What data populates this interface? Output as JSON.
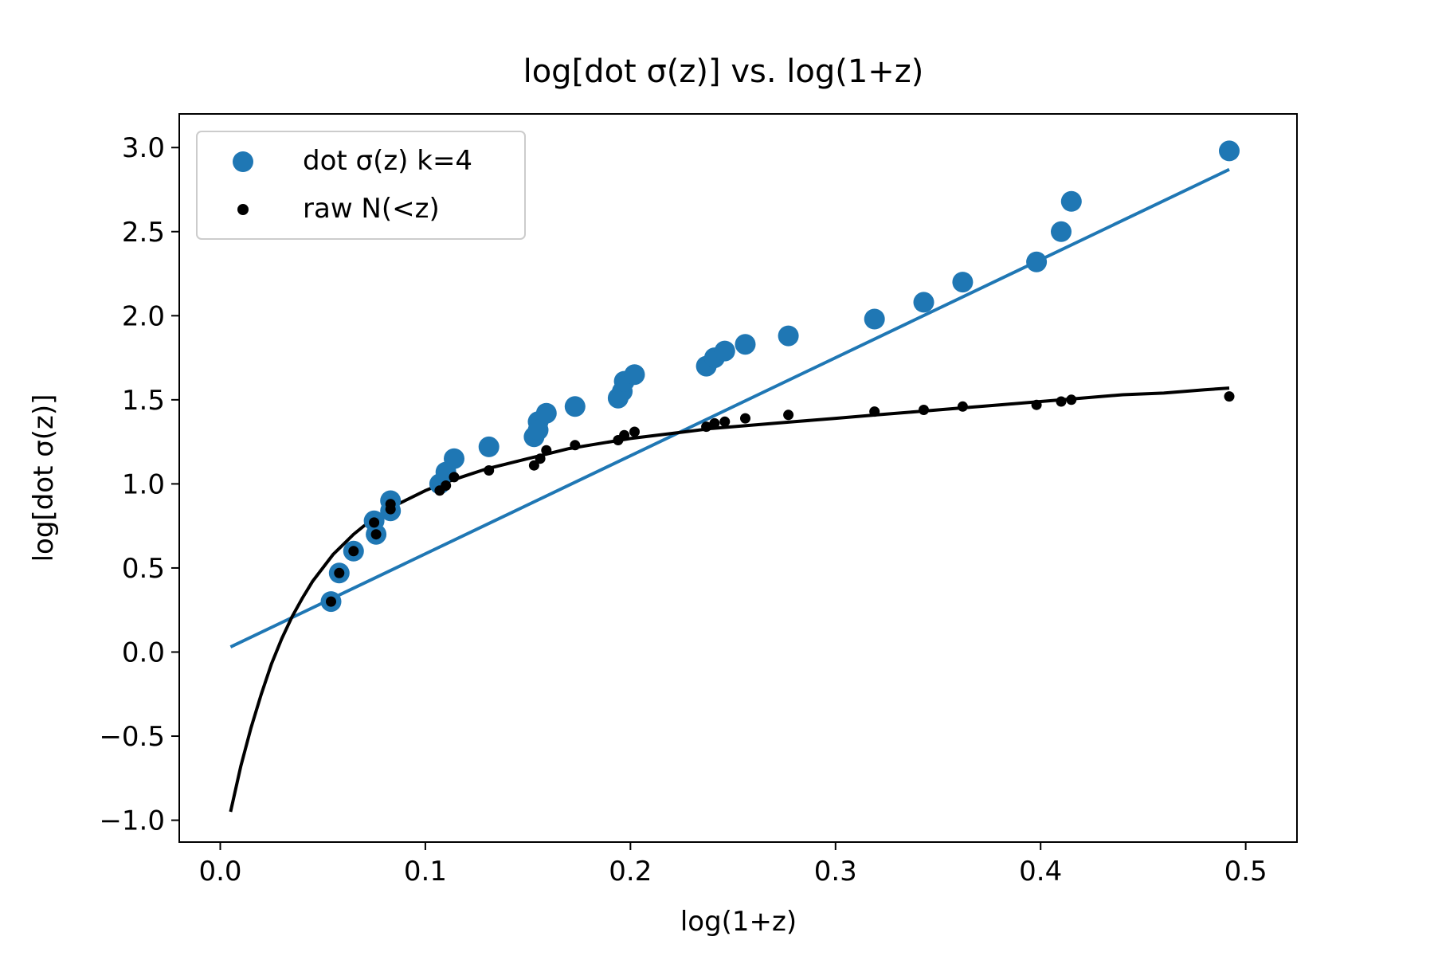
{
  "chart_data": {
    "type": "scatter",
    "title": "log[dot σ(z)] vs. log(1+z)",
    "xlabel": "log(1+z)",
    "ylabel": "log[dot σ(z)]",
    "xlim": [
      -0.02,
      0.525
    ],
    "ylim": [
      -1.13,
      3.2
    ],
    "xticks": [
      0.0,
      0.1,
      0.2,
      0.3,
      0.4,
      0.5
    ],
    "xtick_labels": [
      "0.0",
      "0.1",
      "0.2",
      "0.3",
      "0.4",
      "0.5"
    ],
    "yticks": [
      -1.0,
      -0.5,
      0.0,
      0.5,
      1.0,
      1.5,
      2.0,
      2.5,
      3.0
    ],
    "ytick_labels": [
      "−1.0",
      "−0.5",
      "0.0",
      "0.5",
      "1.0",
      "1.5",
      "2.0",
      "2.5",
      "3.0"
    ],
    "grid": false,
    "legend_position": "top-left",
    "series": [
      {
        "name": "dot σ(z) k=4",
        "kind": "scatter",
        "color": "#1f77b4",
        "x": [
          0.054,
          0.058,
          0.065,
          0.075,
          0.076,
          0.083,
          0.083,
          0.107,
          0.11,
          0.114,
          0.131,
          0.153,
          0.155,
          0.155,
          0.159,
          0.173,
          0.194,
          0.196,
          0.197,
          0.202,
          0.237,
          0.241,
          0.246,
          0.256,
          0.277,
          0.319,
          0.343,
          0.362,
          0.398,
          0.41,
          0.415,
          0.492
        ],
        "y": [
          0.3,
          0.47,
          0.6,
          0.78,
          0.7,
          0.9,
          0.84,
          1.0,
          1.07,
          1.15,
          1.22,
          1.28,
          1.37,
          1.32,
          1.42,
          1.46,
          1.51,
          1.55,
          1.61,
          1.65,
          1.7,
          1.75,
          1.79,
          1.83,
          1.88,
          1.98,
          2.08,
          2.2,
          2.32,
          2.5,
          2.68,
          2.98
        ]
      },
      {
        "name": "raw N(<z)",
        "kind": "scatter",
        "color": "#000000",
        "x": [
          0.054,
          0.058,
          0.065,
          0.075,
          0.076,
          0.083,
          0.083,
          0.107,
          0.11,
          0.114,
          0.131,
          0.153,
          0.156,
          0.159,
          0.173,
          0.194,
          0.197,
          0.202,
          0.237,
          0.241,
          0.246,
          0.256,
          0.277,
          0.319,
          0.343,
          0.362,
          0.398,
          0.41,
          0.415,
          0.492
        ],
        "y": [
          0.3,
          0.47,
          0.6,
          0.77,
          0.7,
          0.88,
          0.85,
          0.96,
          0.99,
          1.04,
          1.08,
          1.11,
          1.15,
          1.2,
          1.23,
          1.26,
          1.29,
          1.31,
          1.34,
          1.36,
          1.37,
          1.39,
          1.41,
          1.43,
          1.44,
          1.46,
          1.47,
          1.49,
          1.5,
          1.52
        ]
      },
      {
        "kind": "line",
        "color": "#1f77b4",
        "x": [
          0.005,
          0.492
        ],
        "y": [
          0.03,
          2.87
        ]
      },
      {
        "kind": "line",
        "color": "#000000",
        "x": [
          0.005,
          0.01,
          0.015,
          0.02,
          0.025,
          0.03,
          0.035,
          0.04,
          0.045,
          0.05,
          0.055,
          0.06,
          0.065,
          0.07,
          0.075,
          0.08,
          0.085,
          0.09,
          0.095,
          0.1,
          0.11,
          0.12,
          0.13,
          0.14,
          0.15,
          0.16,
          0.17,
          0.18,
          0.19,
          0.2,
          0.22,
          0.24,
          0.26,
          0.28,
          0.3,
          0.32,
          0.34,
          0.36,
          0.38,
          0.4,
          0.42,
          0.44,
          0.46,
          0.48,
          0.492
        ],
        "y": [
          -0.95,
          -0.68,
          -0.45,
          -0.25,
          -0.07,
          0.08,
          0.21,
          0.32,
          0.42,
          0.5,
          0.58,
          0.64,
          0.7,
          0.75,
          0.79,
          0.83,
          0.87,
          0.9,
          0.93,
          0.96,
          1.01,
          1.05,
          1.09,
          1.12,
          1.15,
          1.18,
          1.21,
          1.23,
          1.25,
          1.27,
          1.3,
          1.33,
          1.35,
          1.37,
          1.39,
          1.41,
          1.43,
          1.45,
          1.47,
          1.49,
          1.51,
          1.53,
          1.54,
          1.56,
          1.57
        ]
      }
    ]
  }
}
